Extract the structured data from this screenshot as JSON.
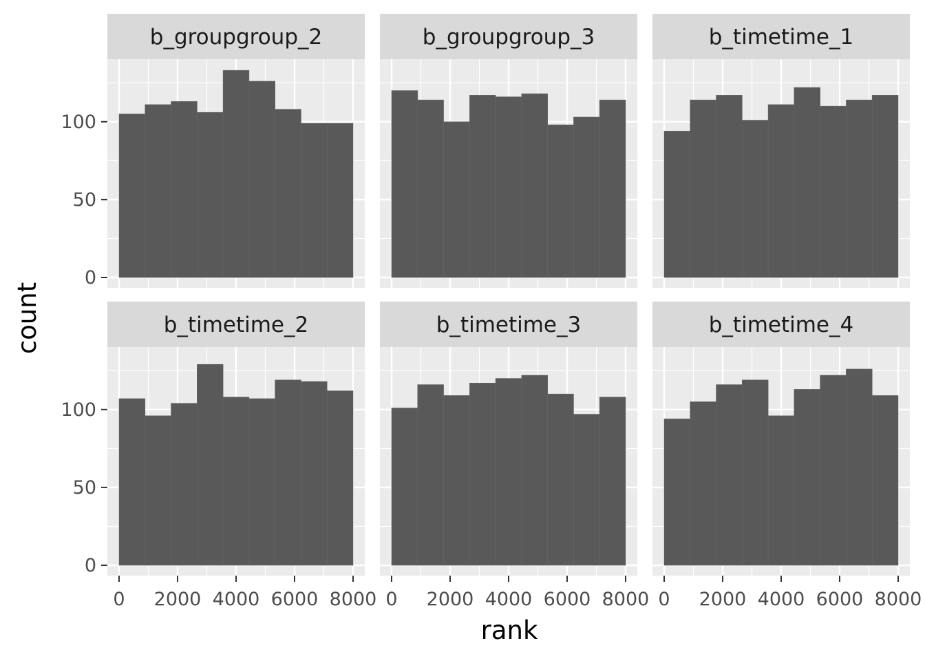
{
  "chart_data": {
    "type": "bar",
    "chart_kind": "histogram",
    "layout": "facet-grid 2x3",
    "xlabel": "rank",
    "ylabel": "count",
    "x_tick_labels": [
      "0",
      "2000",
      "4000",
      "6000",
      "8000"
    ],
    "y_tick_labels": [
      "0",
      "50",
      "100"
    ],
    "xlim": [
      0,
      8000
    ],
    "ylim": [
      0,
      140
    ],
    "bin_edges": [
      0,
      888.9,
      1777.8,
      2666.7,
      3555.6,
      4444.4,
      5333.3,
      6222.2,
      7111.1,
      8000
    ],
    "grid": true,
    "background": "#ebebeb",
    "strip_fill": "#d9d9d9",
    "bar_fill": "#595959",
    "panels": [
      {
        "name": "b_groupgroup_2",
        "values": [
          105,
          111,
          113,
          106,
          133,
          126,
          108,
          99,
          99
        ]
      },
      {
        "name": "b_groupgroup_3",
        "values": [
          120,
          114,
          100,
          117,
          116,
          118,
          98,
          103,
          114
        ]
      },
      {
        "name": "b_timetime_1",
        "values": [
          94,
          114,
          117,
          101,
          111,
          122,
          110,
          114,
          117
        ]
      },
      {
        "name": "b_timetime_2",
        "values": [
          107,
          96,
          104,
          129,
          108,
          107,
          119,
          118,
          112
        ]
      },
      {
        "name": "b_timetime_3",
        "values": [
          101,
          116,
          109,
          117,
          120,
          122,
          110,
          97,
          108
        ]
      },
      {
        "name": "b_timetime_4",
        "values": [
          94,
          105,
          116,
          119,
          96,
          113,
          122,
          126,
          109
        ]
      }
    ]
  }
}
